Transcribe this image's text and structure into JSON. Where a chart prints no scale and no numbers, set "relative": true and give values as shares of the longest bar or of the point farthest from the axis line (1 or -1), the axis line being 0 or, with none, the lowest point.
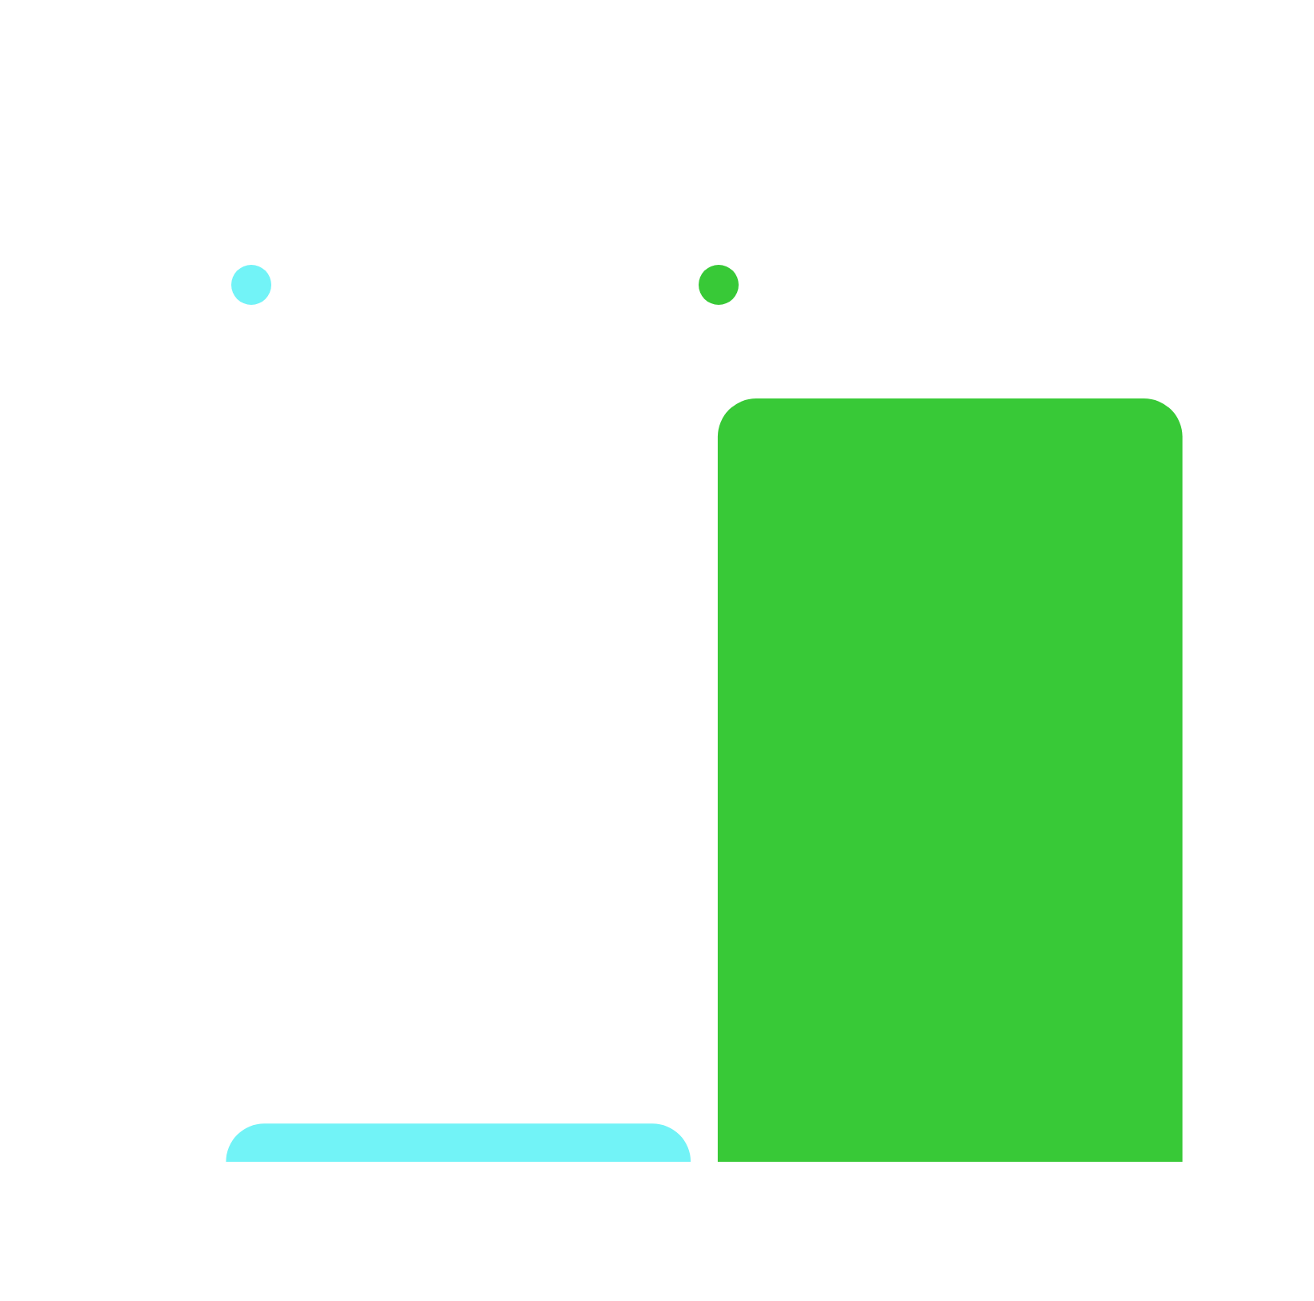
{
  "chart_data": {
    "type": "bar",
    "relative": true,
    "categories": [
      null
    ],
    "series": [
      {
        "color": "#72f3f7",
        "values": [
          0.05
        ]
      },
      {
        "color": "#38c937",
        "values": [
          1
        ]
      }
    ]
  }
}
